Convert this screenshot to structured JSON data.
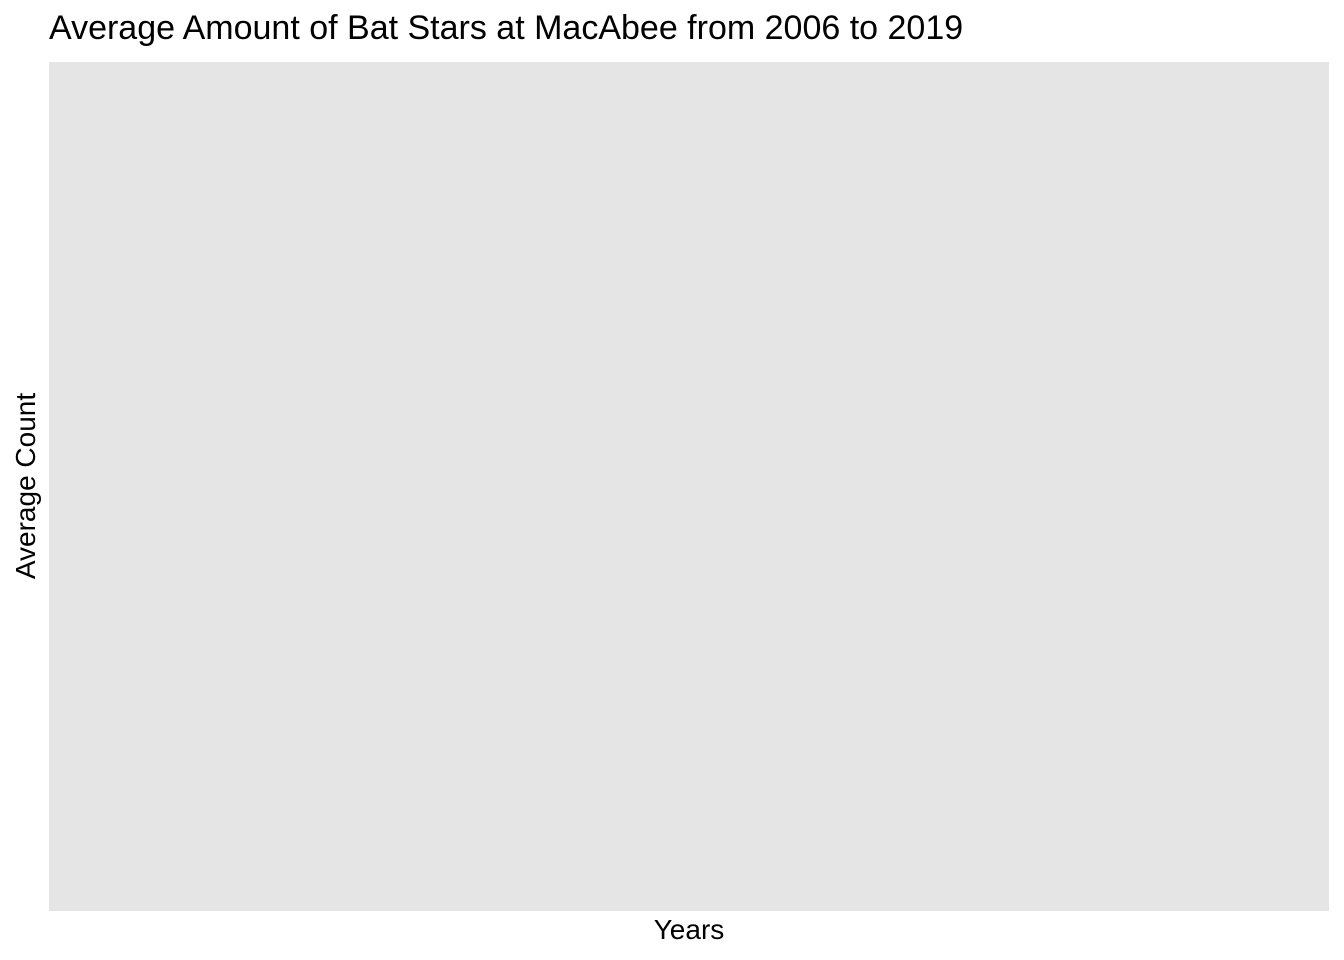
{
  "chart_data": {
    "type": "line",
    "title": "Average Amount of Bat Stars at MacAbee from 2006 to 2019",
    "xlabel": "Years",
    "ylabel": "Average Count",
    "series": [],
    "grid": false,
    "legend": "none",
    "colors": {
      "background": "#ffffff",
      "panel": "#e5e5e5",
      "text": "#000000"
    }
  }
}
